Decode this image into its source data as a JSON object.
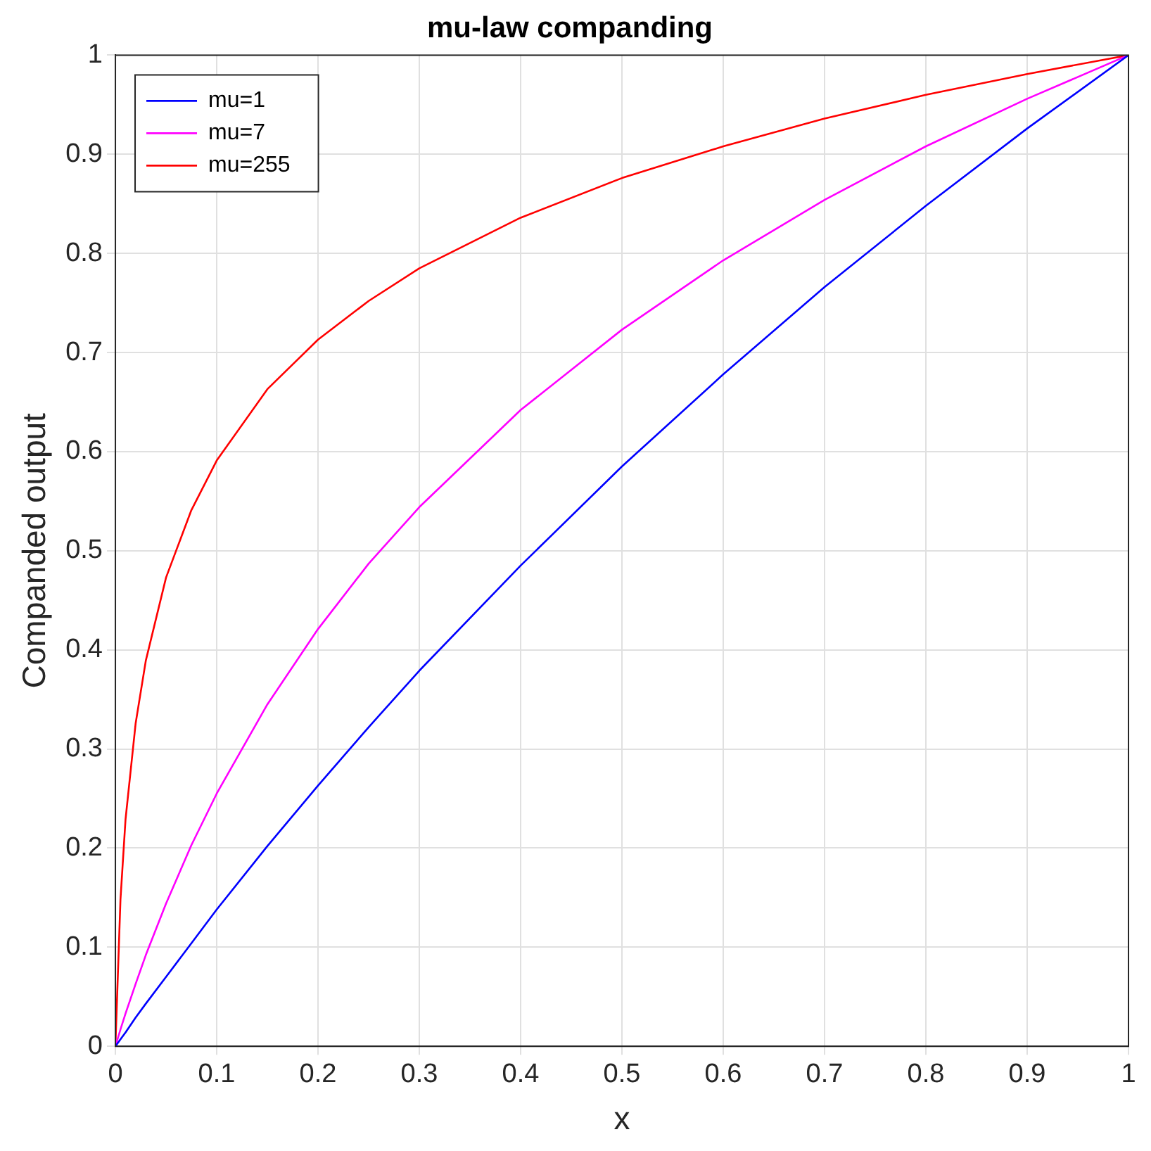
{
  "chart_data": {
    "type": "line",
    "title": "mu-law companding",
    "xlabel": "x",
    "ylabel": "Companded output",
    "x": [
      0,
      0.005,
      0.01,
      0.02,
      0.03,
      0.05,
      0.075,
      0.1,
      0.15,
      0.2,
      0.25,
      0.3,
      0.4,
      0.5,
      0.6,
      0.7,
      0.8,
      0.9,
      1
    ],
    "series": [
      {
        "name": "mu=1",
        "color": "#0000ff",
        "values": [
          0,
          0.007,
          0.014,
          0.029,
          0.043,
          0.07,
          0.104,
          0.138,
          0.202,
          0.263,
          0.322,
          0.379,
          0.485,
          0.585,
          0.678,
          0.766,
          0.848,
          0.926,
          1
        ]
      },
      {
        "name": "mu=7",
        "color": "#ff00ff",
        "values": [
          0,
          0.017,
          0.033,
          0.063,
          0.092,
          0.144,
          0.203,
          0.255,
          0.345,
          0.421,
          0.487,
          0.544,
          0.642,
          0.723,
          0.793,
          0.854,
          0.908,
          0.956,
          1
        ]
      },
      {
        "name": "mu=255",
        "color": "#ff0000",
        "values": [
          0,
          0.148,
          0.229,
          0.326,
          0.389,
          0.473,
          0.541,
          0.591,
          0.663,
          0.713,
          0.752,
          0.785,
          0.836,
          0.876,
          0.908,
          0.936,
          0.96,
          0.981,
          1
        ]
      }
    ],
    "xlim": [
      0,
      1
    ],
    "xticks": [
      0,
      0.1,
      0.2,
      0.3,
      0.4,
      0.5,
      0.6,
      0.7,
      0.8,
      0.9,
      1
    ],
    "ylim": [
      0,
      1
    ],
    "yticks": [
      0,
      0.1,
      0.2,
      0.3,
      0.4,
      0.5,
      0.6,
      0.7,
      0.8,
      0.9,
      1
    ],
    "grid": true,
    "legend": "top left",
    "marker": "none",
    "line_style": "solid"
  }
}
